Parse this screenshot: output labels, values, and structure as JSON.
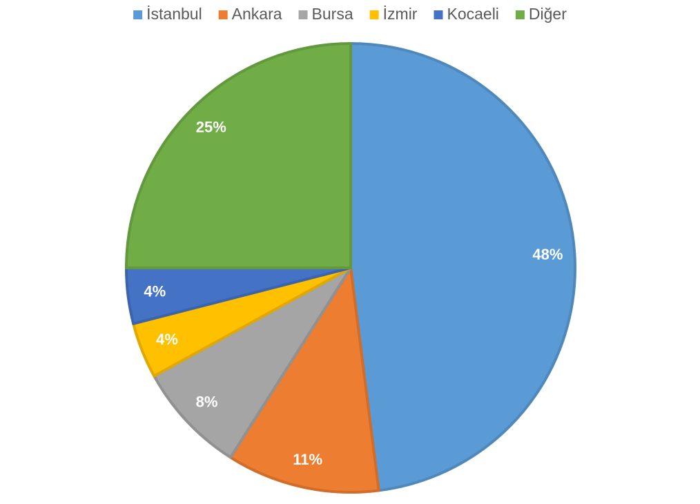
{
  "chart_data": {
    "type": "pie",
    "categories": [
      "İstanbul",
      "Ankara",
      "Bursa",
      "İzmir",
      "Kocaeli",
      "Diğer"
    ],
    "values": [
      48,
      11,
      8,
      4,
      4,
      25
    ],
    "value_labels": [
      "48%",
      "11%",
      "8%",
      "4%",
      "4%",
      "25%"
    ],
    "colors": [
      "#5b9bd5",
      "#ed7d31",
      "#a5a5a5",
      "#ffc000",
      "#4472c4",
      "#70ad47"
    ],
    "legend": "top"
  }
}
